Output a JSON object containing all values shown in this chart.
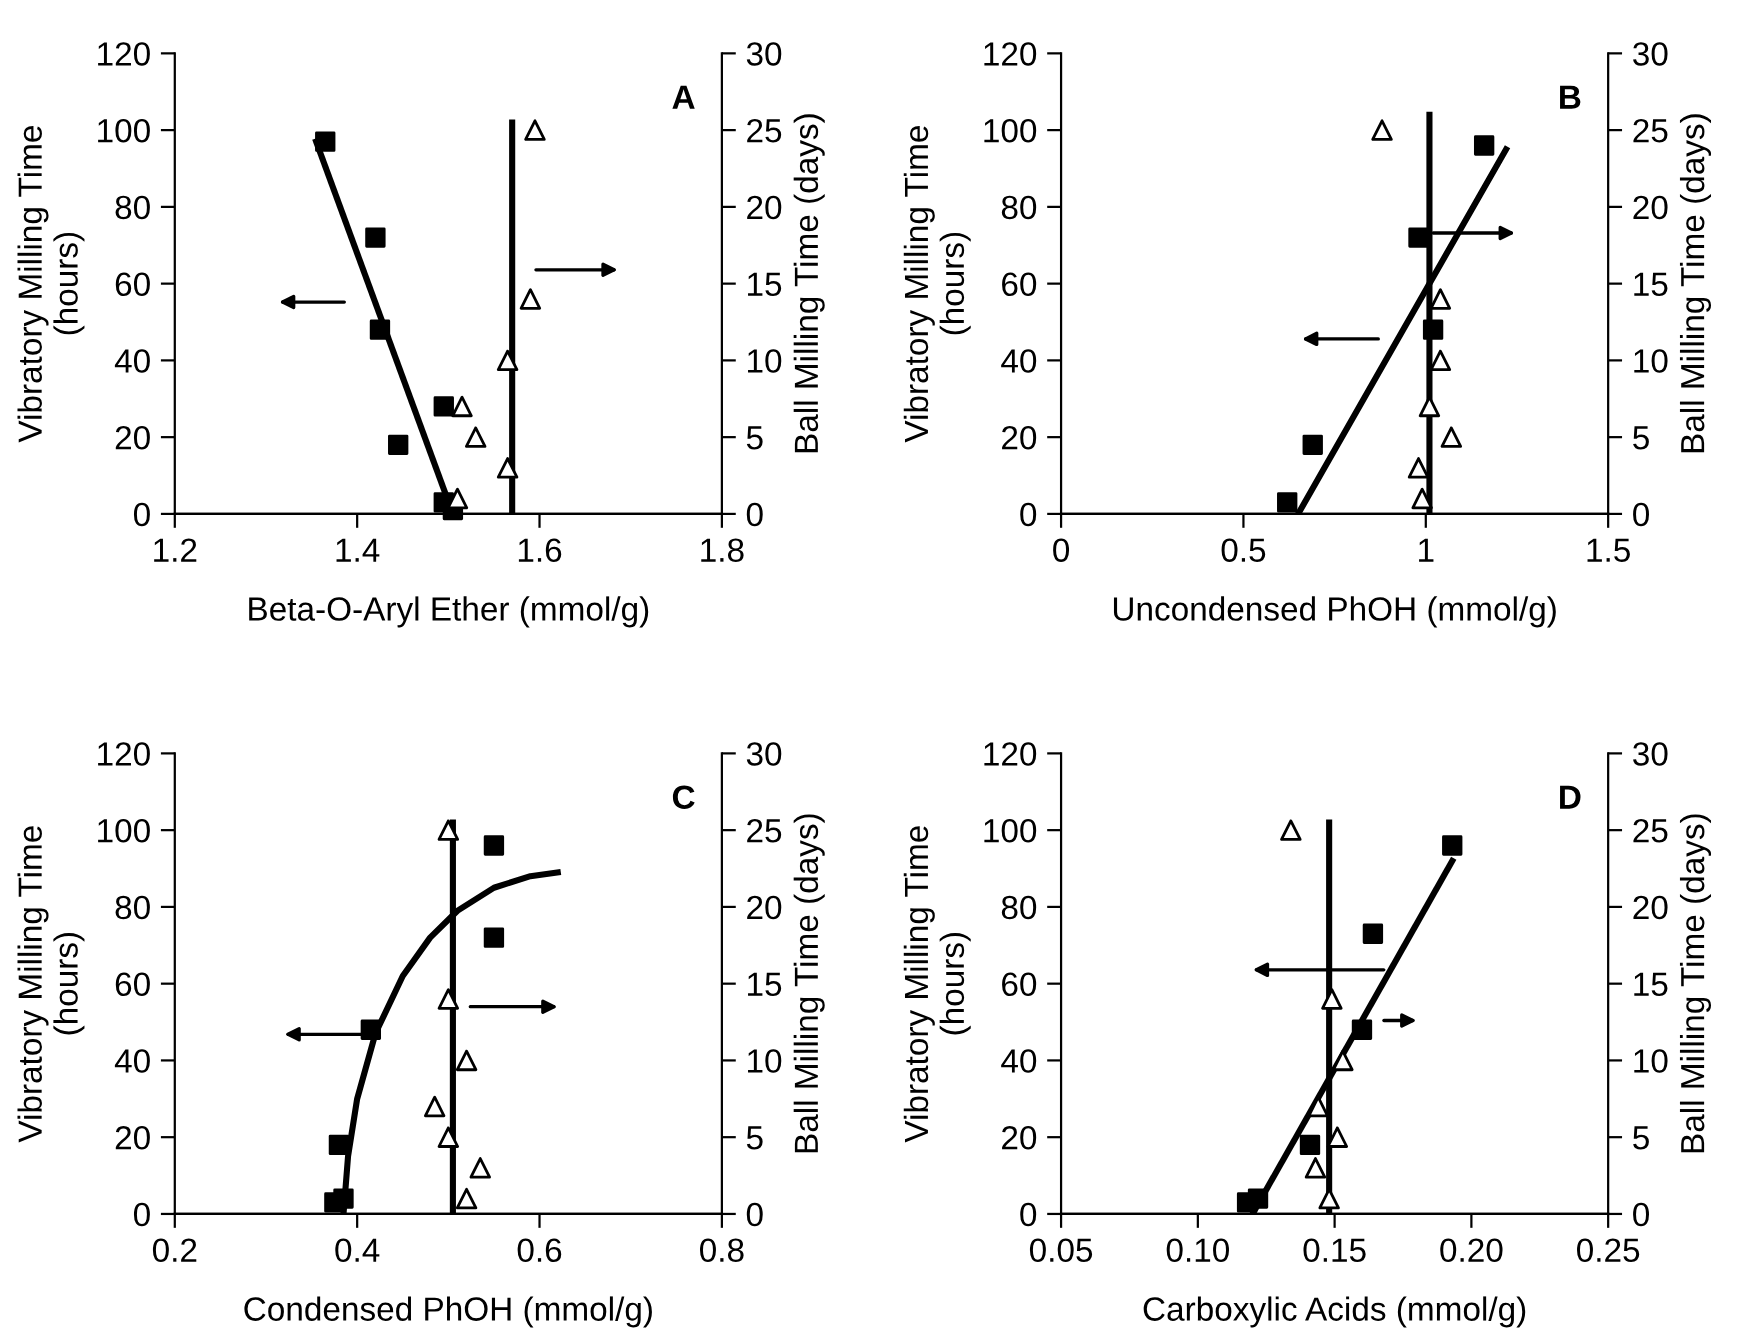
{
  "chart_data": [
    {
      "type": "scatter",
      "xlabel": "Beta-O-Aryl Ether (mmol/g)",
      "ylabel": "Vibratory Milling Time\n(hours)",
      "y2label": "Ball Milling Time (days)",
      "annotations": [
        "A"
      ],
      "xlim": [
        1.2,
        1.8
      ],
      "xticks": [
        {
          "value": 1.2,
          "label": "1.2"
        },
        {
          "value": 1.4,
          "label": "1.4"
        },
        {
          "value": 1.6,
          "label": "1.6"
        },
        {
          "value": 1.8,
          "label": "1.8"
        }
      ],
      "ylim": [
        0,
        120
      ],
      "yticks": [
        0,
        20,
        40,
        60,
        80,
        100,
        120
      ],
      "y2lim": [
        0,
        30
      ],
      "y2ticks": [
        0,
        5,
        10,
        15,
        20,
        25,
        30
      ],
      "grid": false,
      "legend": false,
      "series": [
        {
          "type": "scatter",
          "marker": "square",
          "color": "#000000",
          "x": [
            1.365,
            1.42,
            1.425,
            1.495,
            1.445,
            1.495,
            1.505
          ],
          "values": [
            97,
            72,
            48,
            28,
            18,
            3,
            1
          ]
        },
        {
          "type": "scatter",
          "marker": "triangle",
          "color": "#000000",
          "axis": "y2",
          "x": [
            1.595,
            1.59,
            1.565,
            1.515,
            1.53,
            1.565,
            1.51
          ],
          "values": [
            25,
            14,
            10,
            7,
            5,
            3,
            1
          ]
        },
        {
          "type": "line",
          "marker": "none",
          "color": "#000000",
          "x": [
            1.355,
            1.505
          ],
          "values": [
            97,
            0
          ]
        },
        {
          "type": "line",
          "marker": "none",
          "color": "#000000",
          "axis": "y2",
          "x": [
            1.57,
            1.57
          ],
          "values": [
            0,
            25.5
          ]
        }
      ]
    },
    {
      "type": "scatter",
      "xlabel": "Uncondensed PhOH (mmol/g)",
      "ylabel": "Vibratory Milling Time\n(hours)",
      "y2label": "Ball Milling Time (days)",
      "annotations": [
        "B"
      ],
      "xlim": [
        0,
        1.5
      ],
      "xticks": [
        0,
        0.5,
        1,
        1.5
      ],
      "ylim": [
        0,
        120
      ],
      "yticks": [
        0,
        20,
        40,
        60,
        80,
        100,
        120
      ],
      "y2lim": [
        0,
        30
      ],
      "y2ticks": [
        0,
        5,
        10,
        15,
        20,
        25,
        30
      ],
      "grid": false,
      "legend": false,
      "series": [
        {
          "type": "scatter",
          "marker": "square",
          "color": "#000000",
          "x": [
            1.16,
            0.98,
            1.02,
            0.69,
            0.62
          ],
          "values": [
            96,
            72,
            48,
            18,
            3
          ]
        },
        {
          "type": "scatter",
          "marker": "triangle",
          "color": "#000000",
          "axis": "y2",
          "x": [
            0.88,
            1.04,
            1.04,
            1.01,
            1.07,
            0.98,
            0.99
          ],
          "values": [
            25,
            14,
            10,
            7,
            5,
            3,
            1
          ]
        },
        {
          "type": "line",
          "marker": "none",
          "color": "#000000",
          "x": [
            0.65,
            1.22
          ],
          "values": [
            0,
            95
          ]
        },
        {
          "type": "line",
          "marker": "none",
          "color": "#000000",
          "axis": "y2",
          "x": [
            1.01,
            1.01
          ],
          "values": [
            0,
            26
          ]
        }
      ]
    },
    {
      "type": "scatter",
      "xlabel": "Condensed PhOH (mmol/g)",
      "ylabel": "Vibratory Milling Time\n(hours)",
      "y2label": "Ball Milling Time (days)",
      "annotations": [
        "C"
      ],
      "xlim": [
        0.2,
        0.8
      ],
      "xticks": [
        {
          "value": 0.2,
          "label": "0.2"
        },
        {
          "value": 0.4,
          "label": "0.4"
        },
        {
          "value": 0.6,
          "label": "0.6"
        },
        {
          "value": 0.8,
          "label": "0.8"
        }
      ],
      "ylim": [
        0,
        120
      ],
      "yticks": [
        0,
        20,
        40,
        60,
        80,
        100,
        120
      ],
      "y2lim": [
        0,
        30
      ],
      "y2ticks": [
        0,
        5,
        10,
        15,
        20,
        25,
        30
      ],
      "grid": false,
      "legend": false,
      "series": [
        {
          "type": "scatter",
          "marker": "square",
          "color": "#000000",
          "x": [
            0.55,
            0.55,
            0.415,
            0.38,
            0.375,
            0.385
          ],
          "values": [
            96,
            72,
            48,
            18,
            3,
            4
          ]
        },
        {
          "type": "scatter",
          "marker": "triangle",
          "color": "#000000",
          "axis": "y2",
          "x": [
            0.5,
            0.5,
            0.52,
            0.485,
            0.5,
            0.535,
            0.52
          ],
          "values": [
            25,
            14,
            10,
            7,
            5,
            3,
            1
          ]
        },
        {
          "type": "line",
          "marker": "none",
          "color": "#000000",
          "x": [
            0.385,
            0.39,
            0.4,
            0.42,
            0.45,
            0.48,
            0.51,
            0.55,
            0.59,
            0.62
          ],
          "values": [
            0,
            15,
            30,
            47,
            62,
            72,
            79,
            85,
            88,
            89
          ]
        },
        {
          "type": "line",
          "marker": "none",
          "color": "#000000",
          "axis": "y2",
          "x": [
            0.505,
            0.505
          ],
          "values": [
            0,
            25.5
          ]
        }
      ]
    },
    {
      "type": "scatter",
      "xlabel": "Carboxylic Acids (mmol/g)",
      "ylabel": "Vibratory Milling Time\n(hours)",
      "y2label": "Ball Milling Time (days)",
      "annotations": [
        "D"
      ],
      "xlim": [
        0.05,
        0.25
      ],
      "xticks": [
        {
          "value": 0.05,
          "label": "0.05"
        },
        {
          "value": 0.1,
          "label": "0.10"
        },
        {
          "value": 0.15,
          "label": "0.15"
        },
        {
          "value": 0.2,
          "label": "0.20"
        },
        {
          "value": 0.25,
          "label": "0.25"
        }
      ],
      "ylim": [
        0,
        120
      ],
      "yticks": [
        0,
        20,
        40,
        60,
        80,
        100,
        120
      ],
      "y2lim": [
        0,
        30
      ],
      "y2ticks": [
        0,
        5,
        10,
        15,
        20,
        25,
        30
      ],
      "grid": false,
      "legend": false,
      "series": [
        {
          "type": "scatter",
          "marker": "square",
          "color": "#000000",
          "x": [
            0.193,
            0.164,
            0.16,
            0.141,
            0.118,
            0.122
          ],
          "values": [
            96,
            73,
            48,
            18,
            3,
            4
          ]
        },
        {
          "type": "scatter",
          "marker": "triangle",
          "color": "#000000",
          "axis": "y2",
          "x": [
            0.134,
            0.149,
            0.153,
            0.144,
            0.151,
            0.143,
            0.148
          ],
          "values": [
            25,
            14,
            10,
            7,
            5,
            3,
            1
          ]
        },
        {
          "type": "line",
          "marker": "none",
          "color": "#000000",
          "x": [
            0.12,
            0.193
          ],
          "values": [
            0,
            92
          ]
        },
        {
          "type": "line",
          "marker": "none",
          "color": "#000000",
          "axis": "y2",
          "x": [
            0.148,
            0.148
          ],
          "values": [
            0,
            25.5
          ]
        }
      ]
    }
  ]
}
